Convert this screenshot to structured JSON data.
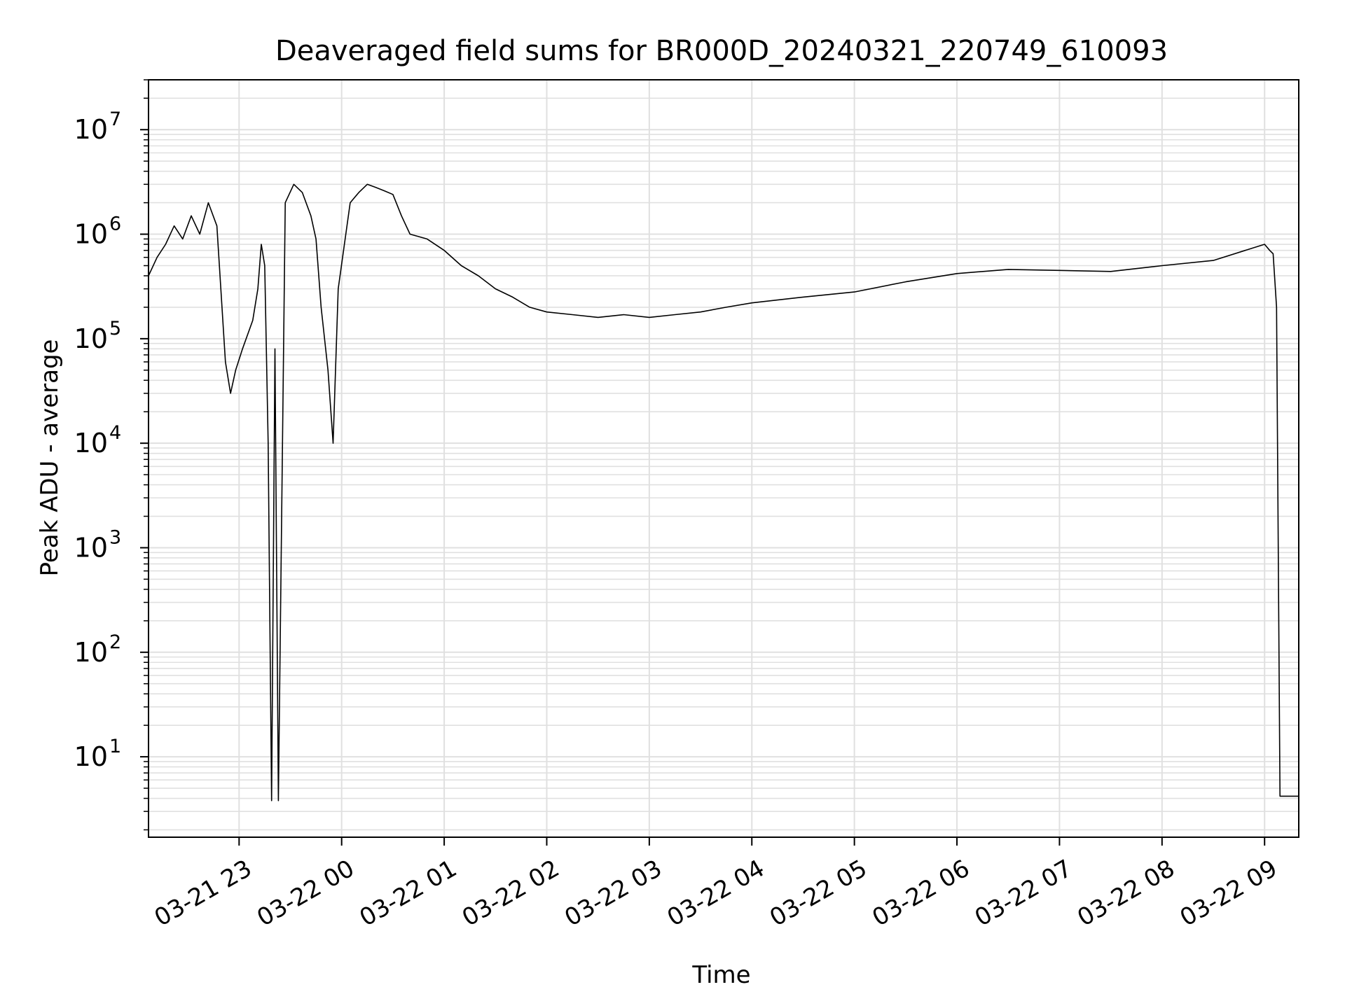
{
  "chart_data": {
    "type": "line",
    "title": "Deaveraged field sums for BR000D_20240321_220749_610093",
    "xlabel": "Time",
    "ylabel": "Peak ADU - average",
    "yscale": "log",
    "grid": true,
    "line_color": "#000000",
    "grid_color": "#e0e0e0",
    "xlim": [
      "2024-03-21 22:07",
      "2024-03-22 09:20"
    ],
    "ylim": [
      1.7,
      30000000
    ],
    "x_ticks": [
      {
        "value": "2024-03-21 23:00",
        "label": "03-21 23"
      },
      {
        "value": "2024-03-22 00:00",
        "label": "03-22 00"
      },
      {
        "value": "2024-03-22 01:00",
        "label": "03-22 01"
      },
      {
        "value": "2024-03-22 02:00",
        "label": "03-22 02"
      },
      {
        "value": "2024-03-22 03:00",
        "label": "03-22 03"
      },
      {
        "value": "2024-03-22 04:00",
        "label": "03-22 04"
      },
      {
        "value": "2024-03-22 05:00",
        "label": "03-22 05"
      },
      {
        "value": "2024-03-22 06:00",
        "label": "03-22 06"
      },
      {
        "value": "2024-03-22 07:00",
        "label": "03-22 07"
      },
      {
        "value": "2024-03-22 08:00",
        "label": "03-22 08"
      },
      {
        "value": "2024-03-22 09:00",
        "label": "03-22 09"
      }
    ],
    "y_ticks": [
      {
        "value": 10,
        "base": "10",
        "exp": "1"
      },
      {
        "value": 100,
        "base": "10",
        "exp": "2"
      },
      {
        "value": 1000,
        "base": "10",
        "exp": "3"
      },
      {
        "value": 10000,
        "base": "10",
        "exp": "4"
      },
      {
        "value": 100000,
        "base": "10",
        "exp": "5"
      },
      {
        "value": 1000000,
        "base": "10",
        "exp": "6"
      },
      {
        "value": 10000000,
        "base": "10",
        "exp": "7"
      }
    ],
    "series": [
      {
        "x": [
          "2024-03-21 22:07",
          "2024-03-21 22:12",
          "2024-03-21 22:17",
          "2024-03-21 22:22",
          "2024-03-21 22:27",
          "2024-03-21 22:32",
          "2024-03-21 22:37",
          "2024-03-21 22:42",
          "2024-03-21 22:47",
          "2024-03-21 22:50",
          "2024-03-21 22:52",
          "2024-03-21 22:55",
          "2024-03-21 22:58",
          "2024-03-21 23:02",
          "2024-03-21 23:08",
          "2024-03-21 23:11",
          "2024-03-21 23:13",
          "2024-03-21 23:15",
          "2024-03-21 23:17",
          "2024-03-21 23:19",
          "2024-03-21 23:21",
          "2024-03-21 23:23",
          "2024-03-21 23:27",
          "2024-03-21 23:32",
          "2024-03-21 23:37",
          "2024-03-21 23:42",
          "2024-03-21 23:45",
          "2024-03-21 23:48",
          "2024-03-21 23:52",
          "2024-03-21 23:55",
          "2024-03-21 23:58",
          "2024-03-22 00:05",
          "2024-03-22 00:10",
          "2024-03-22 00:15",
          "2024-03-22 00:20",
          "2024-03-22 00:25",
          "2024-03-22 00:30",
          "2024-03-22 00:35",
          "2024-03-22 00:40",
          "2024-03-22 00:50",
          "2024-03-22 01:00",
          "2024-03-22 01:10",
          "2024-03-22 01:20",
          "2024-03-22 01:30",
          "2024-03-22 01:40",
          "2024-03-22 01:50",
          "2024-03-22 02:00",
          "2024-03-22 02:15",
          "2024-03-22 02:30",
          "2024-03-22 02:45",
          "2024-03-22 03:00",
          "2024-03-22 03:15",
          "2024-03-22 03:30",
          "2024-03-22 03:45",
          "2024-03-22 04:00",
          "2024-03-22 04:30",
          "2024-03-22 05:00",
          "2024-03-22 05:30",
          "2024-03-22 06:00",
          "2024-03-22 06:30",
          "2024-03-22 07:00",
          "2024-03-22 07:30",
          "2024-03-22 08:00",
          "2024-03-22 08:30",
          "2024-03-22 09:00",
          "2024-03-22 09:03",
          "2024-03-22 09:05",
          "2024-03-22 09:07",
          "2024-03-22 09:09",
          "2024-03-22 09:11",
          "2024-03-22 09:20"
        ],
        "y": [
          400000,
          600000,
          800000,
          1200000,
          900000,
          1500000,
          1000000,
          2000000,
          1200000,
          200000,
          60000,
          30000,
          50000,
          80000,
          150000,
          300000,
          800000,
          500000,
          10000,
          3.8,
          80000,
          3.8,
          2000000,
          3000000,
          2500000,
          1500000,
          900000,
          200000,
          50000,
          10000,
          300000,
          2000000,
          2500000,
          3000000,
          2800000,
          2600000,
          2400000,
          1500000,
          1000000,
          900000,
          700000,
          500000,
          400000,
          300000,
          250000,
          200000,
          180000,
          170000,
          160000,
          170000,
          160000,
          170000,
          180000,
          200000,
          220000,
          250000,
          280000,
          350000,
          420000,
          460000,
          450000,
          440000,
          500000,
          560000,
          800000,
          700000,
          650000,
          200000,
          4.2,
          4.2,
          4.2
        ]
      }
    ]
  }
}
